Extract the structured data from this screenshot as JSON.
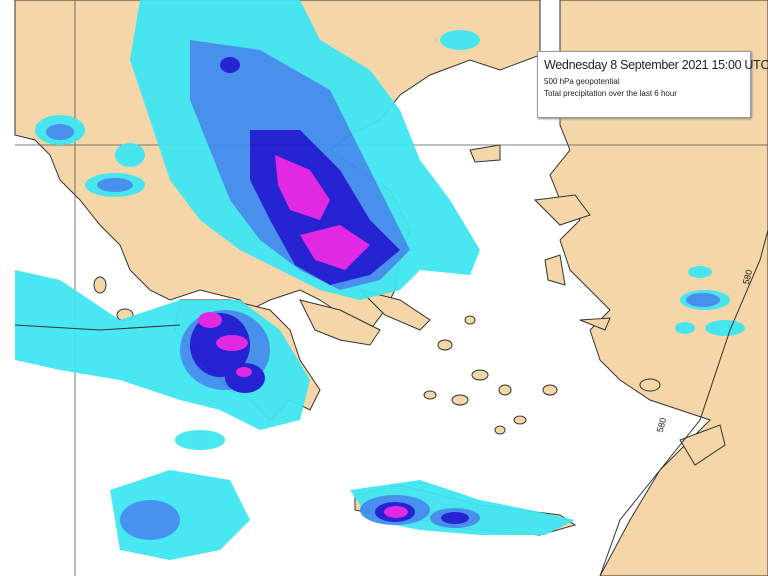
{
  "legend": {
    "title": "Wednesday 8 September 2021 15:00 UTC",
    "line1": "500 hPa geopotential",
    "line2": "Total precipitation over the last 6 hour"
  },
  "contours": [
    {
      "label": "580"
    },
    {
      "label": "580"
    }
  ],
  "colors": {
    "sea": "#ffffff",
    "land": "#f4d6a8",
    "precip_light": "#3fe6f2",
    "precip_medium": "#3f8df0",
    "precip_heavy": "#1c1ad6",
    "precip_extreme": "#e01fe6"
  }
}
